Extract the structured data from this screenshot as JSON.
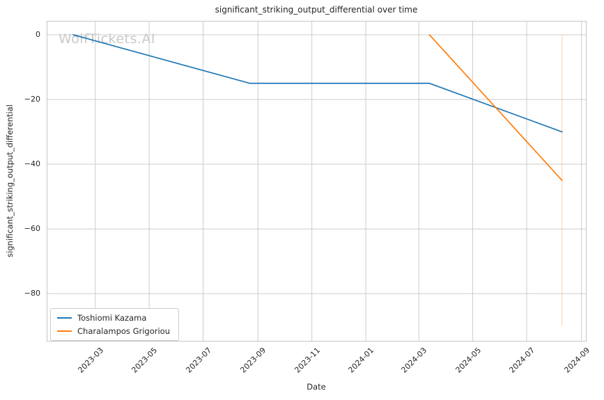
{
  "watermark": "WolfTickets.AI",
  "chart_data": {
    "type": "line",
    "title": "significant_striking_output_differential over time",
    "xlabel": "Date",
    "ylabel": "significant_striking_output_differential",
    "grid": true,
    "legend_position": "lower-left",
    "x_domain": [
      "2023-01-05",
      "2024-09-06"
    ],
    "ylim": [
      -94.6,
      4.3
    ],
    "x_ticks": [
      {
        "label": "2023-03",
        "date": "2023-03-01"
      },
      {
        "label": "2023-05",
        "date": "2023-05-01"
      },
      {
        "label": "2023-07",
        "date": "2023-07-01"
      },
      {
        "label": "2023-09",
        "date": "2023-09-01"
      },
      {
        "label": "2023-11",
        "date": "2023-11-01"
      },
      {
        "label": "2024-01",
        "date": "2024-01-01"
      },
      {
        "label": "2024-03",
        "date": "2024-03-01"
      },
      {
        "label": "2024-05",
        "date": "2024-05-01"
      },
      {
        "label": "2024-07",
        "date": "2024-07-01"
      },
      {
        "label": "2024-09",
        "date": "2024-09-01"
      }
    ],
    "y_ticks": [
      {
        "label": "0",
        "value": 0
      },
      {
        "label": "−20",
        "value": -20
      },
      {
        "label": "−40",
        "value": -40
      },
      {
        "label": "−60",
        "value": -60
      },
      {
        "label": "−80",
        "value": -80
      }
    ],
    "series": [
      {
        "name": "Toshiomi Kazama",
        "color": "#1f77b4",
        "points": [
          {
            "date": "2023-02-04",
            "value": 0
          },
          {
            "date": "2023-08-23",
            "value": -15
          },
          {
            "date": "2024-03-13",
            "value": -15
          },
          {
            "date": "2024-08-10",
            "value": -30
          }
        ]
      },
      {
        "name": "Charalampos Grigoriou",
        "color": "#ff7f0e",
        "points": [
          {
            "date": "2024-03-13",
            "value": 0
          },
          {
            "date": "2024-08-10",
            "value": -45
          }
        ]
      }
    ],
    "event_line": {
      "date": "2024-08-10",
      "from": 0,
      "to": -90,
      "color": "#ff7f0e",
      "opacity": 0.3
    },
    "colors": {
      "grid": "#cccccc",
      "spine": "#c6c6c6",
      "text": "#262626",
      "watermark": "#9e9e9e"
    }
  }
}
